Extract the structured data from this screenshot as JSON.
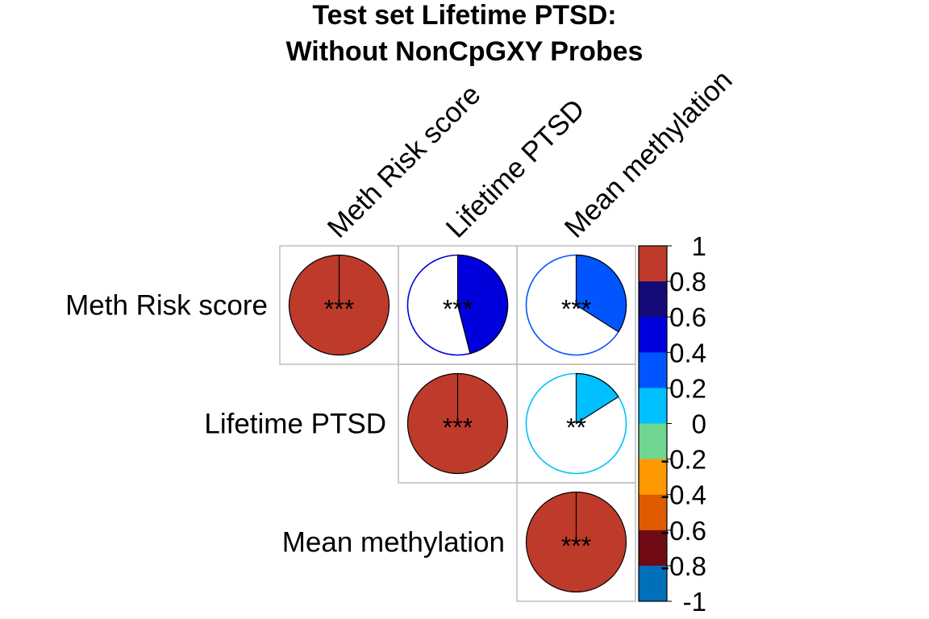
{
  "chart_data": {
    "type": "heatmap",
    "style": "correlation-matrix-pie-upper",
    "title_lines": [
      "Test set Lifetime PTSD:",
      "Without NonCpGXY Probes"
    ],
    "variables": [
      "Meth Risk score",
      "Lifetime PTSD",
      "Mean methylation"
    ],
    "cells": [
      {
        "row": 0,
        "col": 0,
        "value": 1.0,
        "stars": "***",
        "color": "#be3a2b"
      },
      {
        "row": 0,
        "col": 1,
        "value": 0.46,
        "stars": "***",
        "color": "#0000dd"
      },
      {
        "row": 0,
        "col": 2,
        "value": 0.34,
        "stars": "***",
        "color": "#0055ff"
      },
      {
        "row": 1,
        "col": 1,
        "value": 1.0,
        "stars": "***",
        "color": "#be3a2b"
      },
      {
        "row": 1,
        "col": 2,
        "value": 0.16,
        "stars": "**",
        "color": "#00c0ff"
      },
      {
        "row": 2,
        "col": 2,
        "value": 1.0,
        "stars": "***",
        "color": "#be3a2b"
      }
    ],
    "colorbar": {
      "range": [
        -1,
        1
      ],
      "ticks": [
        "1",
        "0.8",
        "0.6",
        "0.4",
        "0.2",
        "0",
        "-0.2",
        "-0.4",
        "-0.6",
        "-0.8",
        "-1"
      ],
      "colors_top_to_bottom": [
        "#be3a2b",
        "#140a78",
        "#0000dd",
        "#0055ff",
        "#00c0ff",
        "#70d690",
        "#ff9900",
        "#e05a00",
        "#700a14",
        "#0070bb"
      ]
    },
    "frame_color": "#bebebe"
  }
}
